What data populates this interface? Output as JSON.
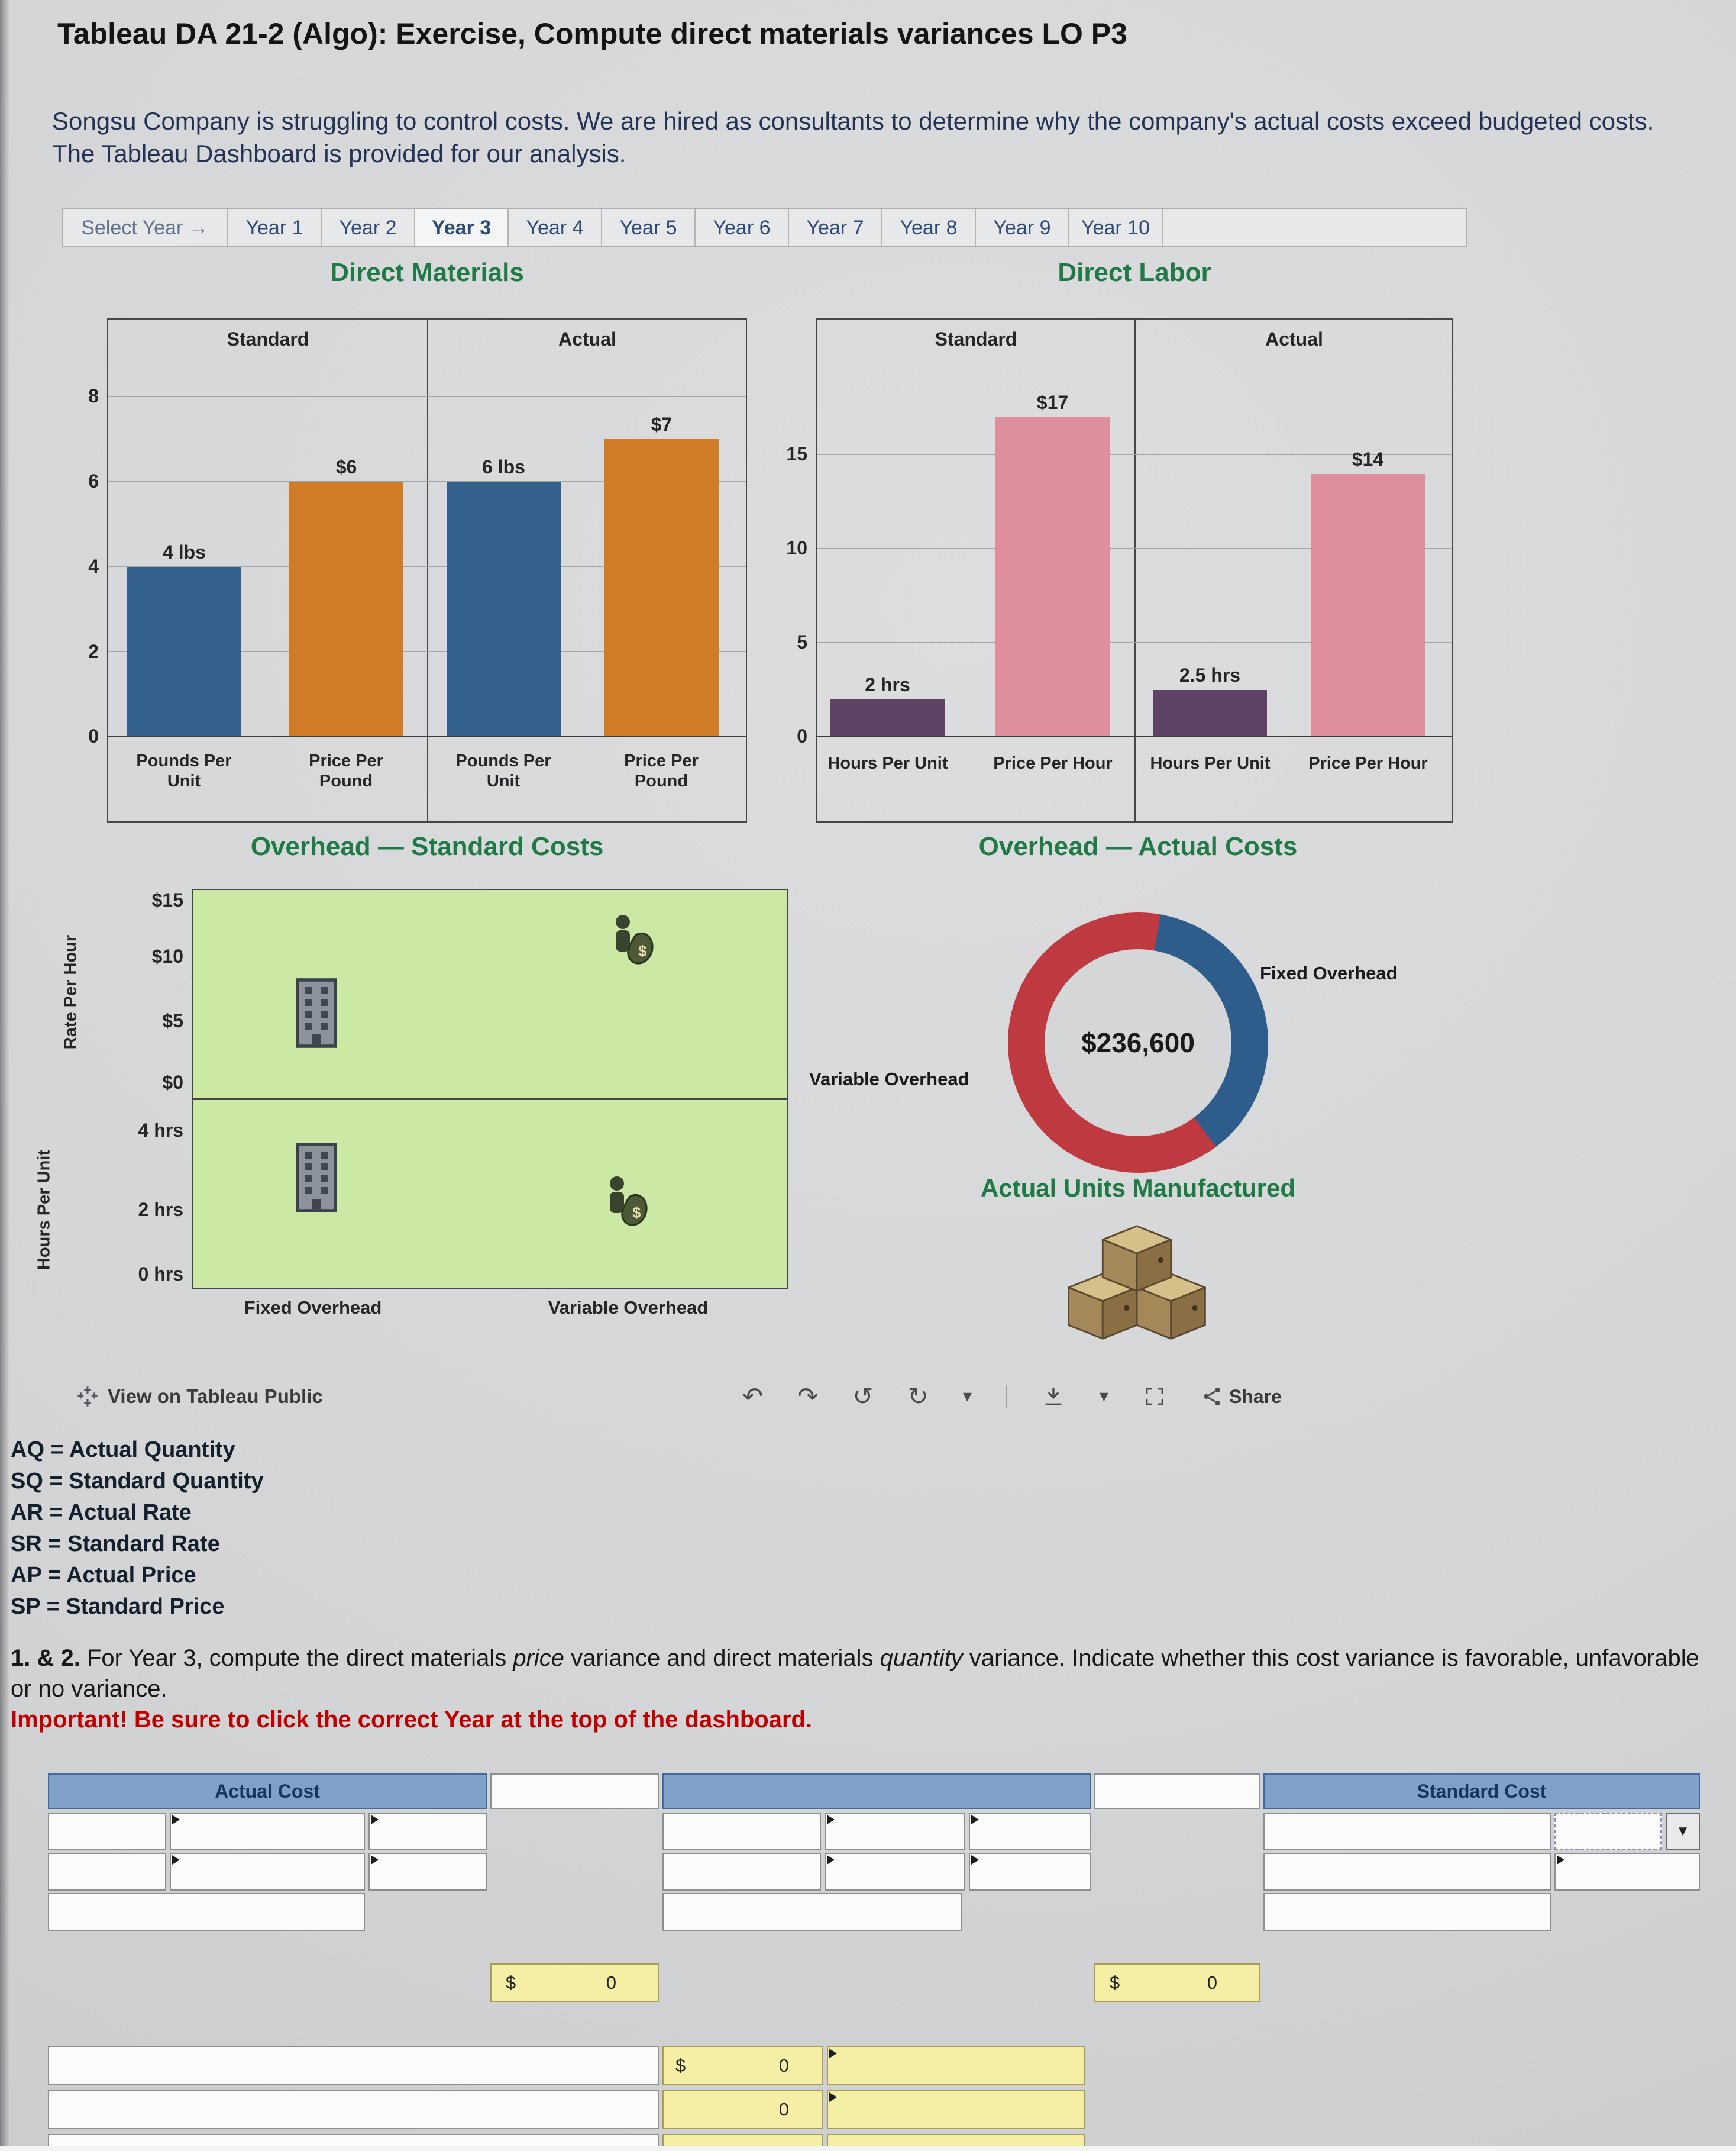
{
  "app": {
    "title": "Tableau DA 21-2 (Algo): Exercise, Compute direct materials variances LO P3",
    "intro": "Songsu Company is struggling to control costs. We are hired as consultants to determine why the company's actual costs exceed budgeted costs. The Tableau Dashboard is provided for our analysis."
  },
  "year_selector": {
    "prompt": "Select Year →",
    "selected": "Year 3",
    "years": [
      "Year 1",
      "Year 2",
      "Year 3",
      "Year 4",
      "Year 5",
      "Year 6",
      "Year 7",
      "Year 8",
      "Year 9",
      "Year 10"
    ]
  },
  "chart_data": [
    {
      "type": "bar",
      "title": "Direct Materials",
      "group_headers": [
        "Standard",
        "Actual"
      ],
      "categories": [
        "Pounds Per Unit",
        "Price Per Pound",
        "Pounds Per Unit",
        "Price Per Pound"
      ],
      "values": [
        4,
        6,
        6,
        7
      ],
      "bar_labels": [
        "4 lbs",
        "$6",
        "6 lbs",
        "$7"
      ],
      "bar_colors": [
        "#33608c",
        "#d07c26",
        "#33608c",
        "#d07c26"
      ],
      "ylim": [
        0,
        8.8
      ],
      "yticks": [
        0,
        2,
        4,
        6,
        8
      ],
      "grid": true,
      "legend": "none"
    },
    {
      "type": "bar",
      "title": "Direct Labor",
      "group_headers": [
        "Standard",
        "Actual"
      ],
      "categories": [
        "Hours Per Unit",
        "Price Per Hour",
        "Hours Per Unit",
        "Price Per Hour"
      ],
      "values": [
        2,
        17,
        2.5,
        14
      ],
      "bar_labels": [
        "2 hrs",
        "$17",
        "2.5 hrs",
        "$14"
      ],
      "bar_colors": [
        "#5e4365",
        "#df8f9b",
        "#5e4365",
        "#df8f9b"
      ],
      "ylim": [
        0,
        19.9
      ],
      "yticks": [
        0,
        5,
        10,
        15
      ],
      "grid": true,
      "legend": "none"
    },
    {
      "type": "scatter",
      "title": "Overhead — Standard Costs",
      "columns": [
        "Fixed Overhead",
        "Variable Overhead"
      ],
      "row_axes": [
        {
          "label": "Rate Per Hour",
          "ticks": [
            "$15",
            "$10",
            "$5",
            "$0"
          ],
          "points": [
            {
              "column": "Fixed Overhead",
              "icon": "building-icon",
              "approx_value": "$5"
            },
            {
              "column": "Variable Overhead",
              "icon": "money-icon",
              "approx_value": "$12"
            }
          ]
        },
        {
          "label": "Hours Per Unit",
          "ticks": [
            "4 hrs",
            "2 hrs",
            "0 hrs"
          ],
          "points": [
            {
              "column": "Fixed Overhead",
              "icon": "building-icon",
              "approx_value": "2 hrs"
            },
            {
              "column": "Variable Overhead",
              "icon": "money-icon",
              "approx_value": "2 hrs"
            }
          ]
        }
      ]
    },
    {
      "type": "pie",
      "title": "Overhead — Actual Costs",
      "donut": true,
      "center_label": "$236,600",
      "segments": [
        {
          "label": "Fixed Overhead",
          "color": "#2e5d8b",
          "approx_pct": 37
        },
        {
          "label": "Variable Overhead",
          "color": "#bf3a40",
          "approx_pct": 63
        }
      ]
    },
    {
      "type": "icon",
      "title": "Actual Units Manufactured",
      "icon": "boxes-icon"
    }
  ],
  "tableau_footer": {
    "view_link": "View on Tableau Public",
    "share_label": "Share",
    "glyphs": {
      "undo": "↶",
      "redo": "↷",
      "revert": "↺",
      "refresh": "↻",
      "caret": "▾"
    },
    "icons": [
      "tableau-logo",
      "undo",
      "redo",
      "revert",
      "refresh",
      "caret-down",
      "separator",
      "download",
      "caret-down",
      "fullscreen",
      "share"
    ]
  },
  "legend_lines": [
    "AQ = Actual Quantity",
    "SQ = Standard Quantity",
    "AR = Actual Rate",
    "SR = Standard Rate",
    "AP = Actual Price",
    "SP = Standard Price"
  ],
  "instructions": {
    "numbers": "1. & 2.",
    "part1": " For Year 3, compute the direct materials ",
    "em1": "price",
    "part2": " variance and direct materials ",
    "em2": "quantity",
    "part3": " variance. Indicate whether this cost variance is favorable, unfavorable or no variance.",
    "important": "Important! Be sure to click the correct Year at the top of the dashboard."
  },
  "worksheet": {
    "actual_header": "Actual Cost",
    "standard_header": "Standard Cost",
    "dropdown_glyph": "▼",
    "subtotal_left": {
      "currency": "$",
      "amount": "0"
    },
    "subtotal_right": {
      "currency": "$",
      "amount": "0"
    },
    "variance_row1": {
      "currency": "$",
      "amount": "0"
    },
    "variance_row2": {
      "amount": "0"
    }
  }
}
